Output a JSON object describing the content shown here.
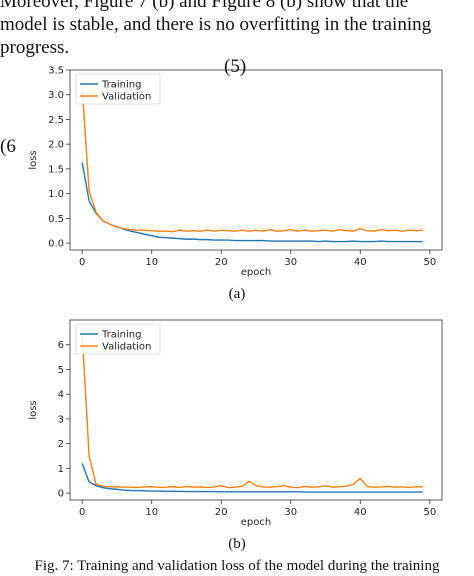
{
  "paragraph": {
    "lines": [
      "Moreover, Figure 7 (b) and Figure 8 (b) show that the",
      "model is stable, and there is no overfitting in the training",
      "progress."
    ]
  },
  "equation_numbers": {
    "top": "(5)",
    "left": "(6"
  },
  "subfigure_labels": [
    "(a)",
    "(b)"
  ],
  "caption": "Fig. 7: Training and validation loss of the model during the training",
  "colors": {
    "training": "#1f77b4",
    "validation": "#ff7f0e",
    "axes": "#333333"
  },
  "chart_data": [
    {
      "type": "line",
      "title": "",
      "xlabel": "epoch",
      "ylabel": "loss",
      "xlim": [
        0,
        50
      ],
      "ylim": [
        0,
        3.5
      ],
      "xticks": [
        0,
        10,
        20,
        30,
        40,
        50
      ],
      "yticks": [
        0.0,
        0.5,
        1.0,
        1.5,
        2.0,
        2.5,
        3.0,
        3.5
      ],
      "ytick_labels": [
        "0.0",
        "0.5",
        "1.0",
        "1.5",
        "2.0",
        "2.5",
        "3.0",
        "3.5"
      ],
      "grid": false,
      "legend_position": "top-left",
      "x": [
        0,
        1,
        2,
        3,
        4,
        5,
        6,
        7,
        8,
        9,
        10,
        11,
        12,
        13,
        14,
        15,
        16,
        17,
        18,
        19,
        20,
        21,
        22,
        23,
        24,
        25,
        26,
        27,
        28,
        29,
        30,
        31,
        32,
        33,
        34,
        35,
        36,
        37,
        38,
        39,
        40,
        41,
        42,
        43,
        44,
        45,
        46,
        47,
        48,
        49
      ],
      "series": [
        {
          "name": "Training",
          "color": "#1f77b4",
          "values": [
            1.63,
            0.85,
            0.6,
            0.45,
            0.38,
            0.33,
            0.28,
            0.24,
            0.21,
            0.18,
            0.15,
            0.12,
            0.11,
            0.1,
            0.09,
            0.08,
            0.08,
            0.07,
            0.07,
            0.06,
            0.06,
            0.06,
            0.05,
            0.05,
            0.05,
            0.05,
            0.05,
            0.04,
            0.04,
            0.04,
            0.04,
            0.04,
            0.04,
            0.04,
            0.03,
            0.04,
            0.03,
            0.03,
            0.03,
            0.04,
            0.03,
            0.03,
            0.03,
            0.04,
            0.03,
            0.03,
            0.03,
            0.03,
            0.03,
            0.03
          ]
        },
        {
          "name": "Validation",
          "color": "#ff7f0e",
          "values": [
            3.15,
            1.05,
            0.62,
            0.45,
            0.38,
            0.32,
            0.29,
            0.27,
            0.26,
            0.26,
            0.25,
            0.24,
            0.24,
            0.23,
            0.26,
            0.24,
            0.25,
            0.24,
            0.26,
            0.24,
            0.26,
            0.25,
            0.24,
            0.26,
            0.24,
            0.26,
            0.24,
            0.27,
            0.24,
            0.25,
            0.27,
            0.24,
            0.26,
            0.24,
            0.25,
            0.26,
            0.24,
            0.27,
            0.25,
            0.24,
            0.29,
            0.25,
            0.24,
            0.27,
            0.25,
            0.26,
            0.24,
            0.26,
            0.25,
            0.26
          ]
        }
      ]
    },
    {
      "type": "line",
      "title": "",
      "xlabel": "epoch",
      "ylabel": "loss",
      "xlim": [
        0,
        50
      ],
      "ylim": [
        0,
        7
      ],
      "xticks": [
        0,
        10,
        20,
        30,
        40,
        50
      ],
      "yticks": [
        0,
        1,
        2,
        3,
        4,
        5,
        6
      ],
      "ytick_labels": [
        "0",
        "1",
        "2",
        "3",
        "4",
        "5",
        "6"
      ],
      "grid": false,
      "legend_position": "top-left",
      "x": [
        0,
        1,
        2,
        3,
        4,
        5,
        6,
        7,
        8,
        9,
        10,
        11,
        12,
        13,
        14,
        15,
        16,
        17,
        18,
        19,
        20,
        21,
        22,
        23,
        24,
        25,
        26,
        27,
        28,
        29,
        30,
        31,
        32,
        33,
        34,
        35,
        36,
        37,
        38,
        39,
        40,
        41,
        42,
        43,
        44,
        45,
        46,
        47,
        48,
        49
      ],
      "series": [
        {
          "name": "Training",
          "color": "#1f77b4",
          "values": [
            1.2,
            0.45,
            0.3,
            0.22,
            0.18,
            0.15,
            0.12,
            0.1,
            0.1,
            0.09,
            0.08,
            0.08,
            0.07,
            0.07,
            0.07,
            0.06,
            0.06,
            0.06,
            0.06,
            0.06,
            0.05,
            0.05,
            0.05,
            0.05,
            0.05,
            0.05,
            0.05,
            0.05,
            0.05,
            0.05,
            0.05,
            0.05,
            0.04,
            0.04,
            0.04,
            0.04,
            0.04,
            0.04,
            0.04,
            0.04,
            0.04,
            0.04,
            0.04,
            0.04,
            0.04,
            0.04,
            0.04,
            0.04,
            0.04,
            0.04
          ]
        },
        {
          "name": "Validation",
          "color": "#ff7f0e",
          "values": [
            6.45,
            1.5,
            0.35,
            0.28,
            0.26,
            0.25,
            0.24,
            0.24,
            0.23,
            0.25,
            0.26,
            0.23,
            0.24,
            0.26,
            0.23,
            0.27,
            0.24,
            0.25,
            0.23,
            0.25,
            0.3,
            0.22,
            0.24,
            0.27,
            0.48,
            0.3,
            0.25,
            0.24,
            0.26,
            0.3,
            0.24,
            0.22,
            0.27,
            0.24,
            0.25,
            0.3,
            0.24,
            0.26,
            0.28,
            0.35,
            0.6,
            0.26,
            0.24,
            0.25,
            0.27,
            0.24,
            0.25,
            0.23,
            0.26,
            0.25
          ]
        }
      ]
    }
  ]
}
